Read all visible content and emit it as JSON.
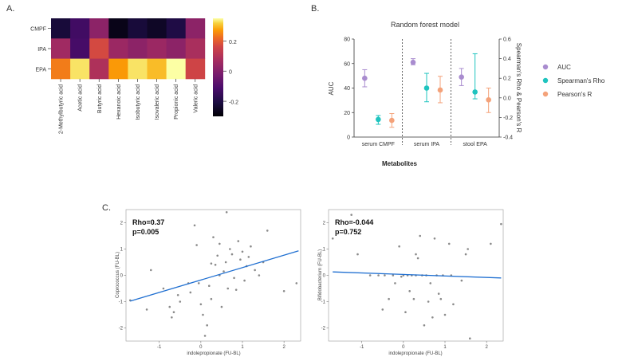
{
  "panel_labels": {
    "a": "A.",
    "b": "B.",
    "c": "C."
  },
  "heatmap": {
    "rows": [
      "CMPF",
      "IPA",
      "EPA"
    ],
    "cols": [
      "2-Methylbutyric acid",
      "Acetic acid",
      "Butyric acid",
      "Hexanoic acid",
      "Isobutyric acid",
      "Isovaleric acid",
      "Propionic acid",
      "Valeric acid"
    ],
    "colorbar_ticks": [
      "0.2",
      "0",
      "-0.2"
    ]
  },
  "forest": {
    "title": "Random forest model",
    "xlabel": "Metabolites",
    "ylabel_left": "AUC",
    "ylabel_right": "Spearman's Rho & Pearson's R",
    "groups": [
      "serum CMPF",
      "serum IPA",
      "stool EPA"
    ],
    "left_ticks": [
      "0",
      "20",
      "40",
      "60",
      "80"
    ],
    "right_ticks": [
      "-0.4",
      "-0.2",
      "0.0",
      "0.2",
      "0.4",
      "0.6"
    ],
    "legend": [
      "AUC",
      "Spearman's Rho",
      "Pearson's R"
    ],
    "colors": {
      "auc": "#a98ccf",
      "rho": "#1fc4bf",
      "pearson": "#f4a27a"
    }
  },
  "scatter_left": {
    "ylabel": "Coprococcus (FU-BL)",
    "xlabel": "indolepropionate (FU-BL)",
    "rho_text": "Rho=0.37",
    "p_text": "p=0.005",
    "xticks": [
      "-1",
      "0",
      "1",
      "2"
    ],
    "yticks": [
      "2",
      "1",
      "0",
      "-1",
      "-2"
    ]
  },
  "scatter_right": {
    "ylabel": "Bifidobacterium (FU-BL)",
    "xlabel": "indolepropionate (FU-BL)",
    "rho_text": "Rho=-0.044",
    "p_text": "p=0.752",
    "xticks": [
      "-1",
      "0",
      "1",
      "2"
    ],
    "yticks": [
      "2",
      "1",
      "0",
      "-1",
      "-2"
    ]
  },
  "chart_data": [
    {
      "type": "heatmap",
      "rows": [
        "CMPF",
        "IPA",
        "EPA"
      ],
      "cols": [
        "2-Methylbutyric acid",
        "Acetic acid",
        "Butyric acid",
        "Hexanoic acid",
        "Isobutyric acid",
        "Isovaleric acid",
        "Propionic acid",
        "Valeric acid"
      ],
      "values": [
        [
          -0.22,
          -0.13,
          0.02,
          -0.27,
          -0.22,
          -0.25,
          -0.2,
          0.02
        ],
        [
          0.06,
          -0.12,
          0.17,
          0.05,
          0.02,
          0.05,
          0.02,
          0.08
        ],
        [
          0.24,
          0.33,
          0.09,
          0.27,
          0.33,
          0.3,
          0.35,
          0.16
        ]
      ],
      "colorbar_ticks": [
        0.2,
        0,
        -0.2
      ],
      "vmin": -0.3,
      "vmax": 0.35
    },
    {
      "type": "scatter",
      "title": "Random forest model",
      "xlabel": "Metabolites",
      "ylabel": "AUC",
      "y2label": "Spearman's Rho & Pearson's R",
      "categories": [
        "serum CMPF",
        "serum IPA",
        "stool EPA"
      ],
      "ylim": [
        0,
        80
      ],
      "y2lim": [
        -0.4,
        0.6
      ],
      "series": [
        {
          "name": "AUC",
          "axis": "left",
          "values": [
            48,
            61,
            49
          ],
          "lower": [
            41,
            59,
            42
          ],
          "upper": [
            55,
            64,
            56
          ]
        },
        {
          "name": "Spearman's Rho",
          "axis": "right",
          "values": [
            -0.22,
            0.1,
            0.06
          ],
          "lower": [
            -0.27,
            -0.04,
            -0.01
          ],
          "upper": [
            -0.18,
            0.25,
            0.45
          ]
        },
        {
          "name": "Pearson's R",
          "axis": "right",
          "values": [
            -0.23,
            0.08,
            -0.02
          ],
          "lower": [
            -0.3,
            -0.05,
            -0.15
          ],
          "upper": [
            -0.16,
            0.22,
            0.1
          ]
        }
      ]
    },
    {
      "type": "scatter",
      "xlabel": "indolepropionate (FU-BL)",
      "ylabel": "Coprococcus (FU-BL)",
      "xlim": [
        -1.8,
        2.4
      ],
      "ylim": [
        -2.5,
        2.5
      ],
      "annotations": [
        "Rho=0.37",
        "p=0.005"
      ],
      "fit_line": {
        "x": [
          -1.7,
          2.35
        ],
        "y": [
          -0.98,
          0.93
        ]
      },
      "points": [
        [
          -1.7,
          -0.95
        ],
        [
          -1.3,
          -1.3
        ],
        [
          -1.2,
          0.2
        ],
        [
          -0.9,
          -0.5
        ],
        [
          -0.75,
          -1.2
        ],
        [
          -0.7,
          -1.6
        ],
        [
          -0.65,
          -1.4
        ],
        [
          -0.55,
          -0.75
        ],
        [
          -0.5,
          -1.0
        ],
        [
          -0.3,
          -0.3
        ],
        [
          -0.25,
          -0.65
        ],
        [
          -0.15,
          1.9
        ],
        [
          -0.1,
          1.15
        ],
        [
          -0.05,
          -0.3
        ],
        [
          0.0,
          -1.1
        ],
        [
          0.05,
          -1.5
        ],
        [
          0.1,
          -2.3
        ],
        [
          0.15,
          -1.9
        ],
        [
          0.2,
          -0.4
        ],
        [
          0.25,
          -0.9
        ],
        [
          0.3,
          1.45
        ],
        [
          0.35,
          0.4
        ],
        [
          0.4,
          0.75
        ],
        [
          0.45,
          0.0
        ],
        [
          0.5,
          -1.2
        ],
        [
          0.55,
          0.15
        ],
        [
          0.6,
          0.5
        ],
        [
          0.62,
          2.4
        ],
        [
          0.65,
          -0.5
        ],
        [
          0.7,
          1.0
        ],
        [
          0.75,
          0.8
        ],
        [
          0.8,
          -0.1
        ],
        [
          0.85,
          -0.55
        ],
        [
          0.9,
          1.3
        ],
        [
          0.95,
          0.6
        ],
        [
          1.0,
          0.9
        ],
        [
          1.05,
          -0.2
        ],
        [
          1.1,
          0.35
        ],
        [
          1.15,
          0.7
        ],
        [
          1.2,
          1.1
        ],
        [
          1.3,
          0.2
        ],
        [
          1.4,
          0.0
        ],
        [
          1.5,
          0.5
        ],
        [
          1.6,
          1.7
        ],
        [
          2.0,
          -0.6
        ],
        [
          2.3,
          -0.3
        ],
        [
          0.25,
          0.45
        ],
        [
          0.45,
          1.2
        ]
      ]
    },
    {
      "type": "scatter",
      "xlabel": "indolepropionate (FU-BL)",
      "ylabel": "Bifidobacterium (FU-BL)",
      "xlim": [
        -1.8,
        2.4
      ],
      "ylim": [
        -2.5,
        2.5
      ],
      "annotations": [
        "Rho=-0.044",
        "p=0.752"
      ],
      "fit_line": {
        "x": [
          -1.7,
          2.35
        ],
        "y": [
          0.13,
          -0.1
        ]
      },
      "points": [
        [
          -1.7,
          1.4
        ],
        [
          -1.25,
          2.3
        ],
        [
          -1.1,
          0.8
        ],
        [
          -0.6,
          0.0
        ],
        [
          -0.5,
          -1.3
        ],
        [
          -0.45,
          0.0
        ],
        [
          -0.35,
          -0.9
        ],
        [
          -0.25,
          0.0
        ],
        [
          -0.2,
          -0.3
        ],
        [
          -0.1,
          1.1
        ],
        [
          -0.05,
          -0.05
        ],
        [
          0.0,
          0.0
        ],
        [
          0.05,
          -1.4
        ],
        [
          0.1,
          0.0
        ],
        [
          0.15,
          -0.6
        ],
        [
          0.2,
          0.0
        ],
        [
          0.25,
          -0.9
        ],
        [
          0.3,
          0.8
        ],
        [
          0.35,
          0.65
        ],
        [
          0.4,
          1.5
        ],
        [
          0.45,
          0.0
        ],
        [
          0.5,
          -1.9
        ],
        [
          0.55,
          0.0
        ],
        [
          0.6,
          -1.0
        ],
        [
          0.65,
          -0.3
        ],
        [
          0.7,
          -1.6
        ],
        [
          0.75,
          1.4
        ],
        [
          0.8,
          0.0
        ],
        [
          0.85,
          -0.7
        ],
        [
          0.9,
          -0.9
        ],
        [
          0.95,
          0.0
        ],
        [
          1.0,
          -1.5
        ],
        [
          1.1,
          1.2
        ],
        [
          1.15,
          0.0
        ],
        [
          1.2,
          -1.1
        ],
        [
          1.4,
          -0.2
        ],
        [
          1.5,
          0.8
        ],
        [
          1.55,
          1.0
        ],
        [
          1.6,
          -2.4
        ],
        [
          2.1,
          1.2
        ],
        [
          2.35,
          1.95
        ],
        [
          -0.8,
          0.0
        ],
        [
          0.3,
          0.0
        ]
      ]
    }
  ]
}
